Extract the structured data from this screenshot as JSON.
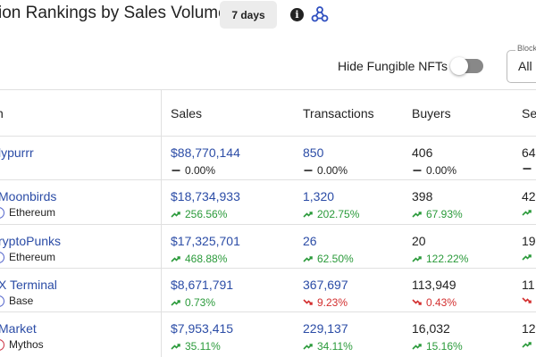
{
  "header": {
    "title": "ion Rankings by Sales Volume",
    "period": "7 days",
    "info_glyph": "i"
  },
  "controls": {
    "hide_fungible_label": "Hide Fungible NFTs",
    "hide_fungible_on": false,
    "chain_select_label": "Block",
    "chain_select_value": "All"
  },
  "columns": [
    "n",
    "Sales",
    "Transactions",
    "Buyers",
    "Se"
  ],
  "rows": [
    {
      "name": "lypurrr",
      "chain": "",
      "sales": "$88,770,144",
      "sales_change": "0.00%",
      "sales_dir": "flat",
      "transactions": "850",
      "tx_change": "0.00%",
      "tx_dir": "flat",
      "buyers": "406",
      "buyers_change": "0.00%",
      "buyers_dir": "flat",
      "sellers": "64",
      "sellers_dir": "flat"
    },
    {
      "name": "Moonbirds",
      "chain": "Ethereum",
      "sales": "$18,734,933",
      "sales_change": "256.56%",
      "sales_dir": "up",
      "transactions": "1,320",
      "tx_change": "202.75%",
      "tx_dir": "up",
      "buyers": "398",
      "buyers_change": "67.93%",
      "buyers_dir": "up",
      "sellers": "42",
      "sellers_dir": "up"
    },
    {
      "name": "ryptoPunks",
      "chain": "Ethereum",
      "sales": "$17,325,701",
      "sales_change": "468.88%",
      "sales_dir": "up",
      "transactions": "26",
      "tx_change": "62.50%",
      "tx_dir": "up",
      "buyers": "20",
      "buyers_change": "122.22%",
      "buyers_dir": "up",
      "sellers": "19",
      "sellers_dir": "up"
    },
    {
      "name": "X Terminal",
      "chain": "Base",
      "sales": "$8,671,791",
      "sales_change": "0.73%",
      "sales_dir": "up",
      "transactions": "367,697",
      "tx_change": "9.23%",
      "tx_dir": "down",
      "buyers": "113,949",
      "buyers_change": "0.43%",
      "buyers_dir": "down",
      "sellers": "11",
      "sellers_dir": "down"
    },
    {
      "name": "Market",
      "chain": "Mythos",
      "sales": "$7,953,415",
      "sales_change": "35.11%",
      "sales_dir": "up",
      "transactions": "229,137",
      "tx_change": "34.11%",
      "tx_dir": "up",
      "buyers": "16,032",
      "buyers_change": "15.16%",
      "buyers_dir": "up",
      "sellers": "12",
      "sellers_dir": "up"
    }
  ],
  "colors": {
    "link": "#2b4ca6",
    "up": "#2a9a3a",
    "down": "#d32f2f",
    "chain_dot": "#5566cc",
    "chain_dot_mythos": "#cc3344"
  },
  "icons": {
    "info": "info-icon",
    "webhook": "webhook-icon",
    "trend_up": "trend-up-icon",
    "trend_down": "trend-down-icon",
    "flat": "dash-icon"
  }
}
